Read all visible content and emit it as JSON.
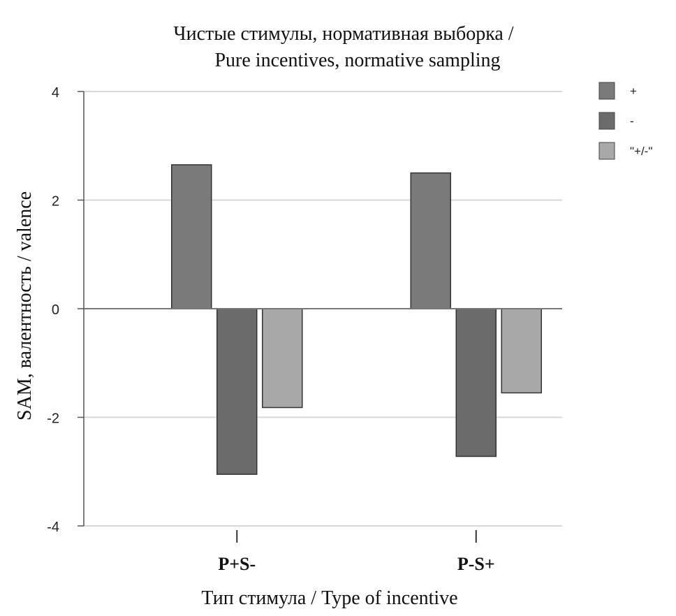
{
  "chart_data": {
    "type": "bar",
    "title": "Чистые стимулы, нормативная выборка /",
    "subtitle": "Pure incentives, normative sampling",
    "xlabel": "Тип стимула / Type of incentive",
    "ylabel": "SAM, валентность / valence",
    "ylim": [
      -4,
      4
    ],
    "yticks": [
      -4,
      -2,
      0,
      2,
      4
    ],
    "yticks_labels": [
      "-4",
      "-2",
      "0",
      "2",
      "4"
    ],
    "grid": true,
    "legend_position": "top-right",
    "categories": [
      "P+S-",
      "P-S+"
    ],
    "series": [
      {
        "name": "+",
        "values": [
          2.65,
          2.5
        ],
        "color": "#7a7a7a"
      },
      {
        "name": "-",
        "values": [
          -3.05,
          -2.72
        ],
        "color": "#6b6b6b"
      },
      {
        "name": "\"+/-\"",
        "values": [
          -1.82,
          -1.55
        ],
        "color": "#a8a8a8"
      }
    ]
  }
}
